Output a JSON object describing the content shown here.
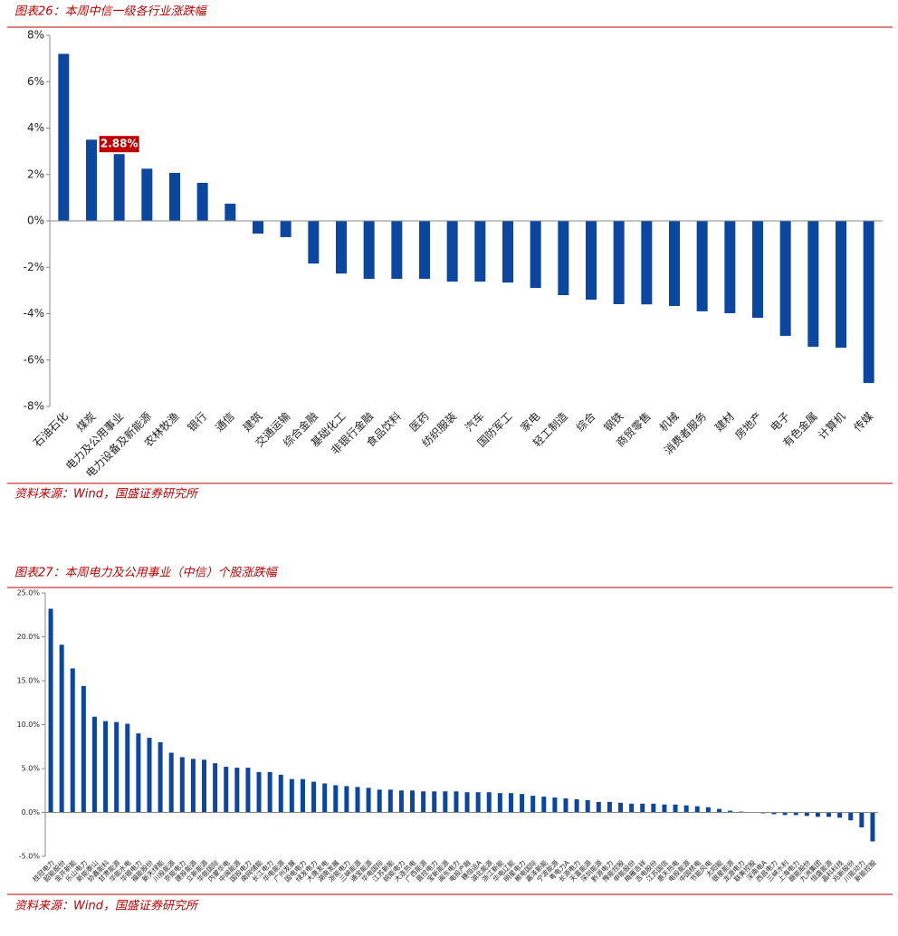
{
  "chart_data": [
    {
      "type": "bar",
      "title": "图表26：本周中信一级各行业涨跌幅",
      "source": "资料来源：Wind，国盛证券研究所",
      "categories": [
        "石油石化",
        "煤炭",
        "电力及公用事业",
        "电力设备及新能源",
        "农林牧渔",
        "银行",
        "通信",
        "建筑",
        "交通运输",
        "综合金融",
        "基础化工",
        "非银行金融",
        "食品饮料",
        "医药",
        "纺织服装",
        "汽车",
        "国防军工",
        "家电",
        "轻工制造",
        "综合",
        "钢铁",
        "商贸零售",
        "机械",
        "消费者服务",
        "建材",
        "房地产",
        "电子",
        "有色金属",
        "计算机",
        "传媒"
      ],
      "values": [
        7.2,
        3.5,
        2.88,
        2.25,
        2.07,
        1.64,
        0.74,
        -0.55,
        -0.7,
        -1.84,
        -2.27,
        -2.5,
        -2.5,
        -2.5,
        -2.62,
        -2.62,
        -2.66,
        -2.89,
        -3.2,
        -3.4,
        -3.59,
        -3.6,
        -3.67,
        -3.9,
        -3.98,
        -4.18,
        -4.96,
        -5.43,
        -5.47,
        -6.99
      ],
      "value_labels": [
        null,
        null,
        "2.88%",
        null,
        null,
        null,
        null,
        null,
        null,
        null,
        null,
        null,
        null,
        null,
        null,
        null,
        null,
        null,
        null,
        null,
        null,
        null,
        null,
        null,
        null,
        null,
        null,
        null,
        null,
        null
      ],
      "color": "#0b47a1",
      "label_color": "#c00000",
      "ylim": [
        -8,
        8
      ],
      "yticks": [
        {
          "value": -8,
          "label": "-8%"
        },
        {
          "value": -6,
          "label": "-6%"
        },
        {
          "value": -4,
          "label": "-4%"
        },
        {
          "value": -2,
          "label": "-2%"
        },
        {
          "value": 0,
          "label": "0%"
        },
        {
          "value": 2,
          "label": "2%"
        },
        {
          "value": 4,
          "label": "4%"
        },
        {
          "value": 6,
          "label": "6%"
        },
        {
          "value": 8,
          "label": "8%"
        }
      ]
    },
    {
      "type": "bar",
      "title": "图表27：本周电力及公用事业（中信）个股涨跌幅",
      "source": "资料来源：Wind，国盛证券研究所",
      "categories": [
        "桂冠电力",
        "韶能股份",
        "金开新能",
        "乐山电力",
        "新能泰山",
        "协鑫能科",
        "甘肃能源",
        "华能水电",
        "华银电力",
        "福能股份",
        "新天绿能",
        "川投能源",
        "京能电力",
        "建投能源",
        "立新能源",
        "华能国际",
        "内蒙华电",
        "中闽能源",
        "国投电力",
        "南网储能",
        "长江电力",
        "华电能源",
        "广州发展",
        "国电电力",
        "绿发电力",
        "大唐发电",
        "湖南发展",
        "浙能电力",
        "三峡能源",
        "通宝能源",
        "华电国际",
        "江苏新能",
        "皖能电力",
        "大连热电",
        "广西能源",
        "晋控电力",
        "宝新能源",
        "闽东电力",
        "电投产融",
        "穗恒运A",
        "湖北能源",
        "浙江新能",
        "华电辽能",
        "明星电力",
        "郴电国际",
        "嘉泽新能",
        "宁波能源",
        "粤电力A",
        "长源电力",
        "天富能源",
        "深圳能源",
        "黔源电力",
        "豫能控股",
        "申能股份",
        "梅雁吉祥",
        "吉电股份",
        "江苏国信",
        "惠天热电",
        "电投能源",
        "中国核电",
        "节能风电",
        "太阳能",
        "银星能源",
        "龙源电力",
        "联美控股",
        "深南电A",
        "西昌电力",
        "三峡水利",
        "上海电力",
        "赣能股份",
        "九洲集团",
        "恒盛能源",
        "晶科科技",
        "兆新股份",
        "川能动力",
        "新能控股"
      ],
      "values": [
        23.2,
        19.1,
        16.4,
        14.4,
        10.9,
        10.4,
        10.3,
        10.1,
        9.0,
        8.5,
        8.0,
        6.8,
        6.3,
        6.1,
        6.0,
        5.6,
        5.2,
        5.1,
        5.1,
        4.6,
        4.6,
        4.3,
        3.8,
        3.8,
        3.5,
        3.3,
        3.1,
        3.0,
        2.9,
        2.8,
        2.6,
        2.6,
        2.5,
        2.5,
        2.4,
        2.4,
        2.4,
        2.4,
        2.3,
        2.3,
        2.3,
        2.2,
        2.2,
        2.1,
        1.9,
        1.8,
        1.7,
        1.6,
        1.5,
        1.4,
        1.2,
        1.2,
        1.1,
        1.0,
        1.0,
        1.0,
        0.9,
        0.9,
        0.8,
        0.7,
        0.6,
        0.4,
        0.2,
        0.1,
        0.0,
        -0.1,
        -0.2,
        -0.3,
        -0.3,
        -0.4,
        -0.5,
        -0.5,
        -0.6,
        -0.9,
        -1.7,
        -3.3
      ],
      "color": "#0b47a1",
      "ylim": [
        -5,
        25
      ],
      "yticks": [
        {
          "value": -5,
          "label": "-5.0%"
        },
        {
          "value": 0,
          "label": "0.0%"
        },
        {
          "value": 5,
          "label": "5.0%"
        },
        {
          "value": 10,
          "label": "10.0%"
        },
        {
          "value": 15,
          "label": "15.0%"
        },
        {
          "value": 20,
          "label": "20.0%"
        },
        {
          "value": 25,
          "label": "25.0%"
        }
      ]
    }
  ]
}
